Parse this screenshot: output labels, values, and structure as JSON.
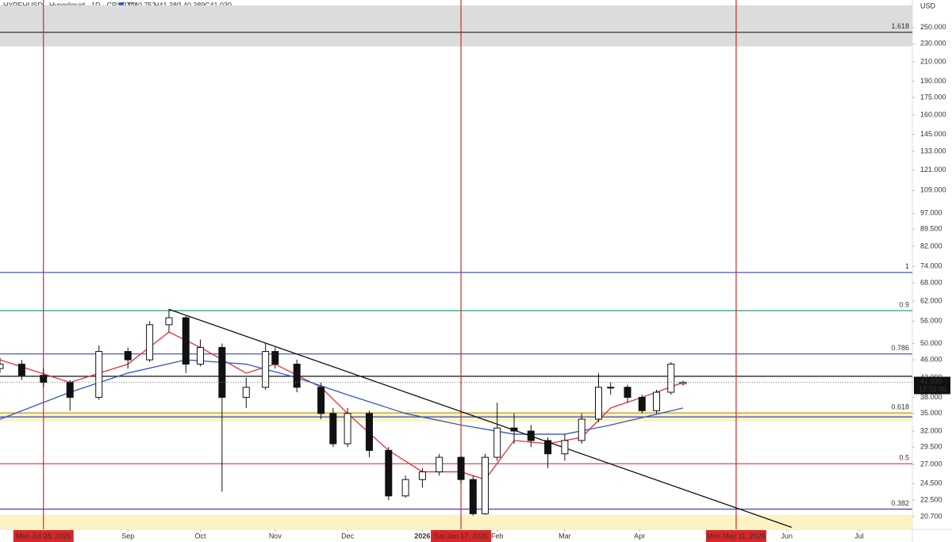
{
  "chart_data": {
    "type": "candlestick",
    "title": "HYPEHUSD · Hyperliquid · 1D · CRYPTO",
    "ohlc_labels": [
      "O40.752",
      "H41.380",
      "L40.389",
      "C41.030"
    ],
    "currency": "USD",
    "log_scale": true,
    "ylim": [
      19.4,
      287.6
    ],
    "yticks": [
      {
        "value": 250,
        "label": "250.000"
      },
      {
        "value": 230,
        "label": "230.000"
      },
      {
        "value": 210,
        "label": "210.000"
      },
      {
        "value": 190,
        "label": "190.000"
      },
      {
        "value": 175,
        "label": "175.000"
      },
      {
        "value": 160,
        "label": "160.000"
      },
      {
        "value": 145,
        "label": "145.000"
      },
      {
        "value": 133,
        "label": "133.000"
      },
      {
        "value": 121,
        "label": "121.000"
      },
      {
        "value": 109,
        "label": "109.000"
      },
      {
        "value": 97,
        "label": "97.000"
      },
      {
        "value": 89.5,
        "label": "89.500"
      },
      {
        "value": 82,
        "label": "82.000"
      },
      {
        "value": 74,
        "label": "74.000"
      },
      {
        "value": 68,
        "label": "68.000"
      },
      {
        "value": 62,
        "label": "62.000"
      },
      {
        "value": 56,
        "label": "56.000"
      },
      {
        "value": 50,
        "label": "50.000"
      },
      {
        "value": 46,
        "label": "46.000"
      },
      {
        "value": 42,
        "label": "42.000"
      },
      {
        "value": 38,
        "label": "38.000"
      },
      {
        "value": 35,
        "label": "35.000"
      },
      {
        "value": 32,
        "label": "32.000"
      },
      {
        "value": 29.5,
        "label": "29.500"
      },
      {
        "value": 27,
        "label": "27.000"
      },
      {
        "value": 24.5,
        "label": "24.500"
      },
      {
        "value": 22.5,
        "label": "22.500"
      },
      {
        "value": 20.7,
        "label": "20.700"
      }
    ],
    "xlim": [
      "2025-07-10",
      "2026-07-23"
    ],
    "xticks": [
      {
        "value": "2025-09-01",
        "label": "Sep"
      },
      {
        "value": "2025-10-01",
        "label": "Oct"
      },
      {
        "value": "2025-11-01",
        "label": "Nov"
      },
      {
        "value": "2025-12-01",
        "label": "Dec"
      },
      {
        "value": "2026-01-01",
        "label": "2026"
      },
      {
        "value": "2026-02-01",
        "label": "Feb"
      },
      {
        "value": "2026-03-01",
        "label": "Mar"
      },
      {
        "value": "2026-04-01",
        "label": "Apr"
      },
      {
        "value": "2026-06-01",
        "label": "Jun"
      },
      {
        "value": "2026-07-01",
        "label": "Jul"
      }
    ],
    "x": [
      "2025-07-10",
      "2025-07-19",
      "2025-07-28",
      "2025-08-08",
      "2025-08-20",
      "2025-09-01",
      "2025-09-10",
      "2025-09-18",
      "2025-09-25",
      "2025-10-01",
      "2025-10-10",
      "2025-10-20",
      "2025-10-28",
      "2025-11-01",
      "2025-11-10",
      "2025-11-20",
      "2025-11-25",
      "2025-12-01",
      "2025-12-10",
      "2025-12-18",
      "2025-12-25",
      "2026-01-01",
      "2026-01-08",
      "2026-01-17",
      "2026-01-22",
      "2026-01-27",
      "2026-02-01",
      "2026-02-08",
      "2026-02-15",
      "2026-02-22",
      "2026-03-01",
      "2026-03-08",
      "2026-03-15",
      "2026-03-20",
      "2026-03-27",
      "2026-04-02",
      "2026-04-08",
      "2026-04-14",
      "2026-04-19"
    ],
    "open": [
      44,
      45,
      42.5,
      41,
      38,
      48,
      46,
      55,
      57,
      45,
      49,
      38,
      40,
      48,
      45,
      40,
      35,
      30,
      35,
      29,
      23,
      25,
      26,
      28,
      25,
      21,
      28,
      32.5,
      32,
      30.5,
      28.5,
      30.5,
      34,
      40,
      40,
      38,
      35.5,
      39,
      40.752
    ],
    "high": [
      46.5,
      46,
      44,
      41.5,
      49.5,
      49,
      56,
      59.5,
      57.5,
      51,
      50,
      42,
      50,
      49,
      46,
      41,
      36,
      36,
      35.5,
      29.5,
      25.5,
      26.5,
      28.5,
      28.2,
      25.5,
      28.5,
      37,
      35,
      33,
      31,
      31.5,
      35,
      43,
      41,
      40.5,
      38.5,
      39.5,
      45.5,
      41.38
    ],
    "low": [
      43,
      41.5,
      40,
      35.5,
      37.5,
      44,
      45.5,
      53,
      43,
      44.5,
      23.5,
      36,
      39.5,
      44,
      39,
      34,
      29.5,
      29.5,
      28,
      22.5,
      22.8,
      24,
      25.5,
      24.5,
      20.8,
      20.9,
      27.5,
      30,
      29.5,
      26.5,
      27.5,
      30,
      33.5,
      38.5,
      37,
      35,
      35,
      38.5,
      40.389
    ],
    "close": [
      45,
      42.5,
      41,
      38,
      48,
      46,
      55,
      57,
      45,
      49,
      38,
      40,
      48,
      45,
      40,
      35,
      30,
      35,
      29,
      23,
      25,
      26,
      28,
      25,
      21,
      28,
      32.5,
      32,
      30.5,
      28.5,
      30.5,
      34,
      40,
      40,
      38,
      35.5,
      39,
      45,
      41.03
    ],
    "last_price_label": "41.030",
    "countdown": "12:52:46",
    "moving_averages": [
      {
        "color": "#e0303a",
        "x": [
          "2025-07-10",
          "2025-08-08",
          "2025-09-01",
          "2025-09-18",
          "2025-10-01",
          "2025-10-20",
          "2025-11-01",
          "2025-11-20",
          "2025-12-01",
          "2025-12-18",
          "2026-01-01",
          "2026-01-17",
          "2026-01-27",
          "2026-02-08",
          "2026-02-22",
          "2026-03-08",
          "2026-03-20",
          "2026-04-02",
          "2026-04-19"
        ],
        "values": [
          46,
          41,
          45,
          53,
          49,
          43,
          45,
          40,
          35,
          29,
          26,
          26,
          25,
          30.5,
          30,
          31,
          36,
          38,
          41
        ]
      },
      {
        "color": "#3355cc",
        "x": [
          "2025-07-10",
          "2025-08-08",
          "2025-09-01",
          "2025-09-25",
          "2025-10-20",
          "2025-11-10",
          "2025-12-01",
          "2025-12-25",
          "2026-01-17",
          "2026-02-08",
          "2026-03-01",
          "2026-03-20",
          "2026-04-19"
        ],
        "values": [
          34,
          39,
          43,
          46,
          45,
          42,
          38.5,
          35,
          33,
          31.5,
          31.5,
          33,
          36
        ]
      }
    ],
    "levels": [
      {
        "value": 244,
        "label": "1.618",
        "color": "#333333"
      },
      {
        "value": 71.8,
        "label": "1",
        "color": "#3344cc"
      },
      {
        "value": 59.1,
        "label": "0.9",
        "color": "#2a9d6f"
      },
      {
        "value": 47.4,
        "label": "0.786",
        "color": "#3344cc"
      },
      {
        "value": 42.3,
        "color": "#111111"
      },
      {
        "value": 35.1,
        "label": "0.618",
        "color": "#c9a227"
      },
      {
        "value": 34.4,
        "color": "#3344cc"
      },
      {
        "value": 27.1,
        "label": "0.5",
        "color": "#e0303a"
      },
      {
        "value": 21.5,
        "label": "0.382",
        "color": "#3344cc"
      }
    ],
    "zones": [
      {
        "from": 227,
        "to": 280,
        "color": "#dcdcdc"
      },
      {
        "from": 33.6,
        "to": 35.3,
        "color": "#fbf3c4"
      },
      {
        "from": 19.4,
        "to": 20.9,
        "color": "#fbf3c4"
      }
    ],
    "vlines": [
      {
        "x": "2025-07-28",
        "label": "Mon Jul 28, 2025"
      },
      {
        "x": "2026-01-17",
        "label": "Sat Jan 17, 2026"
      },
      {
        "x": "2026-05-11",
        "label": "Mon May 11, 2026"
      }
    ],
    "trendline": {
      "x": [
        "2025-09-18",
        "2026-06-03"
      ],
      "values": [
        59.5,
        19.6
      ]
    }
  }
}
